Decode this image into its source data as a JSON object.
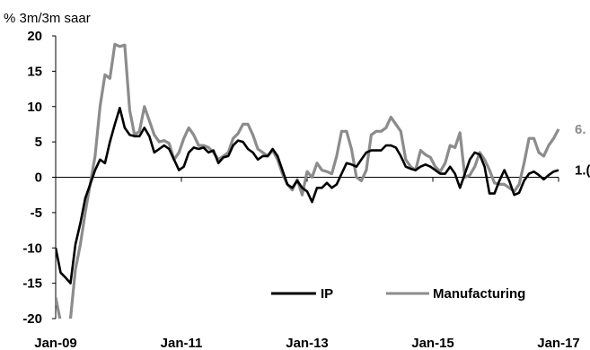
{
  "chart_data": {
    "type": "line",
    "unit_label": "% 3m/3m saar",
    "x_tick_labels": [
      "Jan-09",
      "Jan-11",
      "Jan-13",
      "Jan-15",
      "Jan-17"
    ],
    "ylim": [
      -20,
      20
    ],
    "y_ticks": [
      20,
      15,
      10,
      5,
      0,
      -5,
      -10,
      -15,
      -20
    ],
    "y_tick_labels": [
      "20",
      "15",
      "10",
      "5",
      "0",
      "-5",
      "-10",
      "-15",
      "-20"
    ],
    "grid": false,
    "legend_position": "bottom-right",
    "series": [
      {
        "name": "IP",
        "color": "#000000",
        "end_label": "1.(",
        "values": [
          -10.0,
          -13.5,
          -14.2,
          -15.0,
          -9.5,
          -6.5,
          -3.0,
          -1.0,
          1.0,
          2.5,
          2.0,
          5.0,
          7.5,
          9.8,
          7.0,
          6.0,
          5.8,
          5.8,
          7.0,
          5.8,
          3.5,
          4.0,
          4.5,
          4.0,
          2.5,
          1.0,
          1.5,
          3.5,
          4.2,
          4.0,
          4.2,
          3.5,
          3.8,
          2.0,
          2.8,
          3.0,
          4.5,
          5.2,
          5.0,
          4.0,
          3.5,
          2.5,
          3.0,
          3.0,
          4.0,
          3.0,
          1.0,
          -1.0,
          -1.5,
          -0.5,
          -1.5,
          -2.0,
          -3.5,
          -1.5,
          -1.5,
          -0.8,
          -1.5,
          -1.0,
          0.5,
          2.0,
          1.8,
          1.5,
          2.5,
          3.5,
          3.8,
          3.8,
          3.8,
          4.5,
          4.5,
          4.2,
          3.0,
          1.5,
          1.2,
          1.0,
          1.5,
          1.8,
          1.5,
          1.0,
          0.5,
          0.5,
          1.5,
          0.5,
          -1.5,
          0.5,
          2.5,
          3.5,
          3.2,
          1.5,
          -2.3,
          -2.3,
          -0.5,
          1.0,
          -0.5,
          -2.5,
          -2.2,
          -0.5,
          0.5,
          0.8,
          0.3,
          -0.3,
          0.3,
          0.8,
          1.0
        ]
      },
      {
        "name": "Manufacturing",
        "color": "#8c8c8c",
        "end_label": "6.",
        "values": [
          -17.0,
          -20.5,
          -22.0,
          -20.0,
          -13.0,
          -9.5,
          -5.0,
          -1.0,
          3.0,
          10.0,
          14.5,
          14.0,
          18.8,
          18.5,
          18.7,
          9.5,
          6.0,
          6.5,
          10.0,
          8.0,
          6.0,
          5.0,
          5.2,
          4.8,
          2.5,
          3.5,
          5.5,
          7.0,
          6.0,
          4.5,
          4.5,
          4.2,
          3.5,
          2.5,
          3.0,
          3.5,
          5.5,
          6.2,
          7.5,
          7.5,
          6.0,
          4.0,
          3.5,
          3.0,
          3.8,
          2.5,
          0.5,
          -1.0,
          -1.8,
          -0.3,
          -2.5,
          0.8,
          0.0,
          2.0,
          1.0,
          0.8,
          0.5,
          3.0,
          6.5,
          6.5,
          4.0,
          0.0,
          -0.5,
          1.0,
          6.0,
          6.5,
          6.5,
          7.0,
          8.5,
          7.5,
          6.5,
          2.5,
          1.5,
          1.0,
          3.8,
          3.2,
          2.8,
          1.5,
          0.8,
          2.0,
          4.5,
          4.2,
          6.3,
          0.0,
          0.3,
          1.5,
          3.5,
          2.5,
          1.0,
          -0.8,
          -1.0,
          -1.0,
          -1.5,
          -2.0,
          -1.0,
          2.0,
          5.5,
          5.5,
          3.5,
          3.0,
          4.5,
          5.5,
          6.8
        ]
      }
    ]
  }
}
